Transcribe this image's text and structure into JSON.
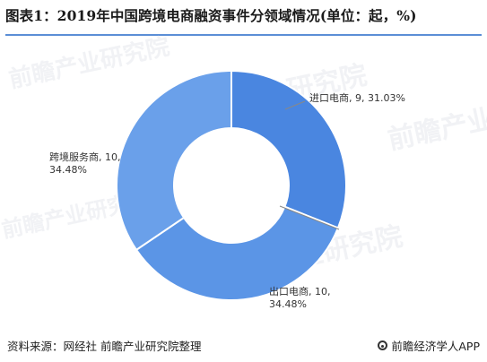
{
  "title": "图表1：2019年中国跨境电商融资事件分领域情况(单位：起，%)",
  "footer": {
    "source": "资料来源：网经社 前瞻产业研究院整理",
    "brand": "前瞻经济学人APP"
  },
  "watermark": "前瞻产业研究院",
  "colors": {
    "import": "#4a86e0",
    "export": "#5b95e6",
    "service": "#6aa0ea",
    "rule": "#5b8ed6"
  },
  "chart_data": {
    "type": "pie",
    "donut": true,
    "slices": [
      {
        "name": "进口电商",
        "value": 9,
        "percent": "31.03%",
        "label_line1": "进口电商, 9, 31.03%",
        "label_line2": ""
      },
      {
        "name": "出口电商",
        "value": 10,
        "percent": "34.48%",
        "label_line1": "出口电商, 10,",
        "label_line2": "34.48%"
      },
      {
        "name": "跨境服务商",
        "value": 10,
        "percent": "34.48%",
        "label_line1": "跨境服务商, 10,",
        "label_line2": "34.48%"
      }
    ]
  }
}
